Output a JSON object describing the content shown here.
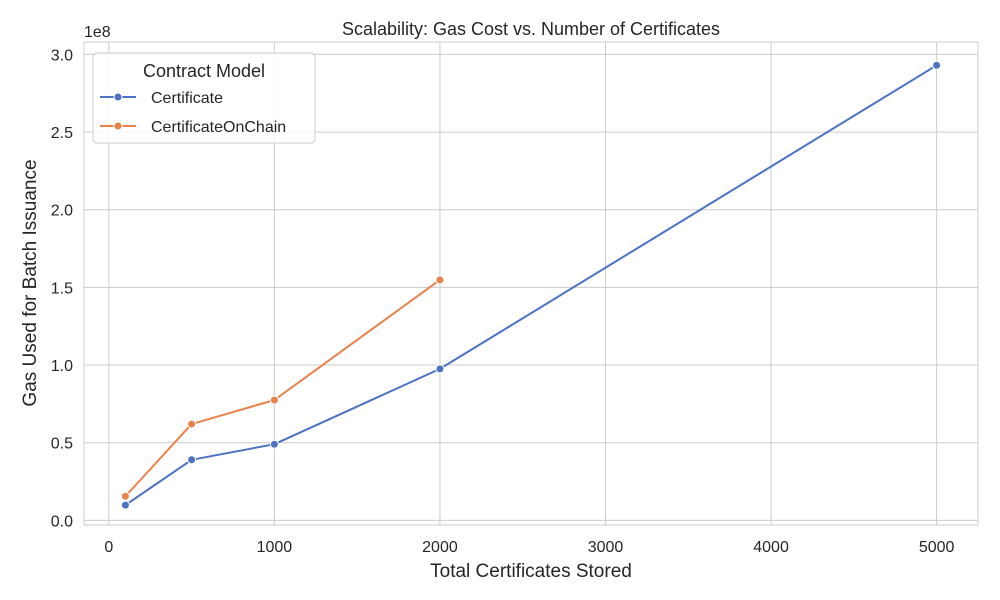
{
  "chart_data": {
    "type": "line",
    "title": "Scalability: Gas Cost vs. Number of Certificates",
    "xlabel": "Total Certificates Stored",
    "ylabel": "Gas Used for Batch Issuance",
    "y_offset_label": "1e8",
    "y_scale": 100000000,
    "xlim": [
      -150,
      5250
    ],
    "ylim": [
      -3000000,
      308000000
    ],
    "x_ticks": [
      0,
      1000,
      2000,
      3000,
      4000,
      5000
    ],
    "x_tick_labels": [
      "0",
      "1000",
      "2000",
      "3000",
      "4000",
      "5000"
    ],
    "y_ticks": [
      0,
      50000000,
      100000000,
      150000000,
      200000000,
      250000000,
      300000000
    ],
    "y_tick_labels": [
      "0.0",
      "0.5",
      "1.0",
      "1.5",
      "2.0",
      "2.5",
      "3.0"
    ],
    "grid": true,
    "legend": {
      "title": "Contract Model",
      "placement": "top-left"
    },
    "series": [
      {
        "name": "Certificate",
        "color": "#4c72c4",
        "x": [
          100,
          500,
          1000,
          2000,
          5000
        ],
        "y": [
          9800000,
          39000000,
          49000000,
          97500000,
          293000000
        ]
      },
      {
        "name": "CertificateOnChain",
        "color": "#e8814a",
        "x": [
          100,
          500,
          1000,
          2000
        ],
        "y": [
          15500000,
          62000000,
          77500000,
          154800000
        ]
      }
    ]
  }
}
